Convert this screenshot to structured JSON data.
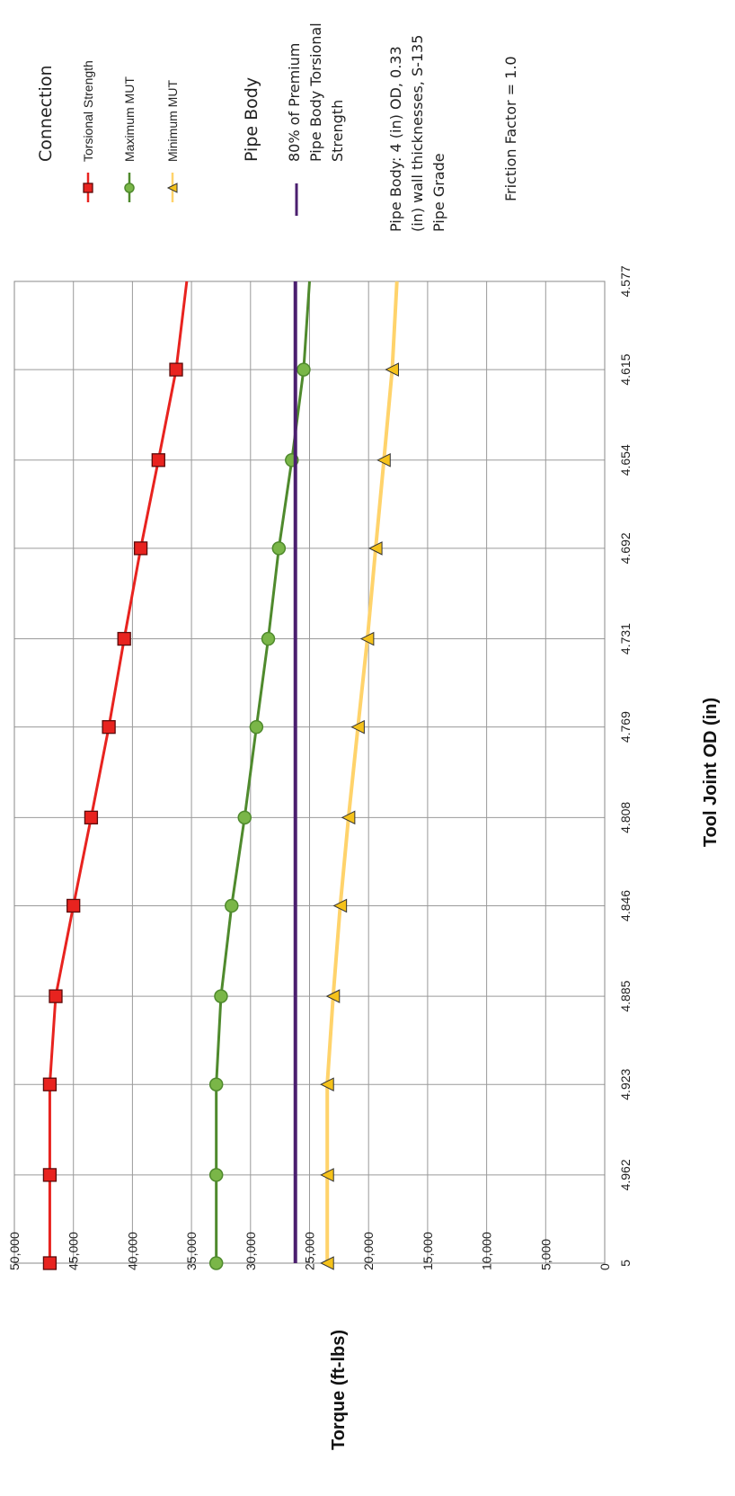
{
  "chart_data": {
    "type": "line",
    "xlabel": "Tool Joint OD  (in)",
    "ylabel": "Torque  (ft-lbs)",
    "x_ticks": [
      "5",
      "4.962",
      "4.923",
      "4.885",
      "4.846",
      "4.808",
      "4.769",
      "4.731",
      "4.692",
      "4.654",
      "4.615",
      "4.577"
    ],
    "x": [
      5,
      4.962,
      4.923,
      4.885,
      4.846,
      4.808,
      4.769,
      4.731,
      4.692,
      4.654,
      4.615
    ],
    "xlim": [
      5,
      4.577
    ],
    "ylim": [
      0,
      50000
    ],
    "y_ticks": [
      "0",
      "5,000",
      "10,000",
      "15,000",
      "20,000",
      "25,000",
      "30,000",
      "35,000",
      "40,000",
      "45,000",
      "50,000"
    ],
    "grid": true,
    "series": [
      {
        "name": "Torsional Strength",
        "color": "#e8231f",
        "marker": "square",
        "values": [
          47000,
          47000,
          47000,
          46500,
          45000,
          43500,
          42000,
          40700,
          39300,
          37800,
          36300
        ],
        "end_value": 35400
      },
      {
        "name": "Maximum MUT",
        "color": "#4f8a2d",
        "marker": "circle",
        "marker_fill": "#7ab648",
        "values": [
          32900,
          32900,
          32900,
          32500,
          31600,
          30500,
          29500,
          28500,
          27600,
          26500,
          25500
        ],
        "end_value": 25000
      },
      {
        "name": "Minimum MUT",
        "color": "#ffd36b",
        "marker": "triangle",
        "marker_fill": "#f5c21b",
        "values": [
          23500,
          23500,
          23500,
          23000,
          22400,
          21700,
          20900,
          20100,
          19400,
          18700,
          18000
        ],
        "end_value": 17600
      },
      {
        "name": "80% of Premium Pipe Body Torsional Strength",
        "color": "#4b1f6f",
        "constant": 26200
      }
    ],
    "legend": {
      "connection_title": "Connection",
      "pipe_body_title": "Pipe Body",
      "pipe_line_label": [
        "80% of Premium",
        "Pipe Body Torsional",
        "Strength"
      ],
      "pipe_description": [
        "Pipe Body: 4 (in) OD, 0.33",
        "(in) wall thicknesses,  S-135",
        "Pipe Grade"
      ],
      "friction_factor": "Friction Factor = 1.0"
    }
  }
}
